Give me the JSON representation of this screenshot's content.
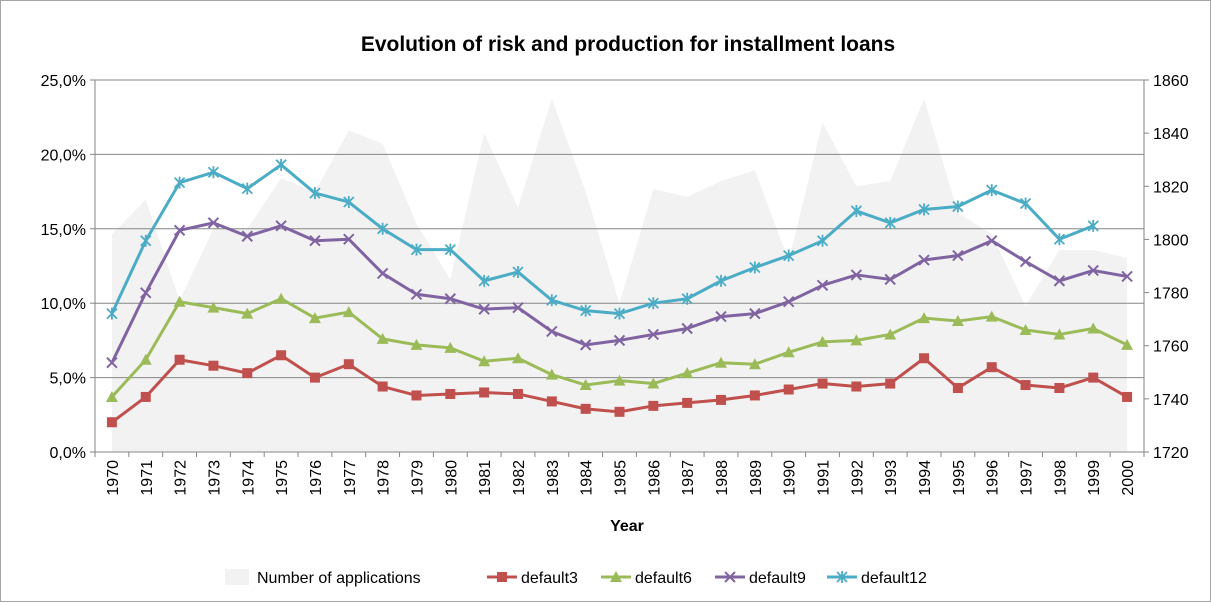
{
  "chart_data": {
    "type": "line",
    "title": "Evolution of risk and production for installment loans",
    "xlabel": "Year",
    "ylabel": "",
    "y2label": "",
    "categories": [
      "1970",
      "1971",
      "1972",
      "1973",
      "1974",
      "1975",
      "1976",
      "1977",
      "1978",
      "1979",
      "1980",
      "1981",
      "1982",
      "1983",
      "1984",
      "1985",
      "1986",
      "1987",
      "1988",
      "1989",
      "1990",
      "1991",
      "1992",
      "1993",
      "1994",
      "1995",
      "1996",
      "1997",
      "1998",
      "1999",
      "2000"
    ],
    "ylim": [
      0,
      0.25
    ],
    "y_ticks": [
      "0,0%",
      "5,0%",
      "10,0%",
      "15,0%",
      "20,0%",
      "25,0%"
    ],
    "y_tick_values": [
      0,
      0.05,
      0.1,
      0.15,
      0.2,
      0.25
    ],
    "y2lim": [
      1720,
      1860
    ],
    "y2_ticks": [
      "1720",
      "1740",
      "1760",
      "1780",
      "1800",
      "1820",
      "1840",
      "1860"
    ],
    "y2_tick_values": [
      1720,
      1740,
      1760,
      1780,
      1800,
      1820,
      1840,
      1860
    ],
    "grid": true,
    "legend_position": "bottom",
    "area_series": {
      "name": "Number of applications",
      "axis": "secondary",
      "color": "#f2f2f2",
      "values": [
        1802,
        1815,
        1777,
        1804,
        1804,
        1823,
        1818,
        1841,
        1836,
        1806,
        1785,
        1840,
        1812,
        1853,
        1818,
        1776,
        1819,
        1816,
        1822,
        1826,
        1792,
        1844,
        1820,
        1822,
        1853,
        1810,
        1802,
        1775,
        1796,
        1796,
        1793
      ]
    },
    "series": [
      {
        "name": "default3",
        "color": "#c0504d",
        "marker": "square",
        "values": [
          0.02,
          0.037,
          0.062,
          0.058,
          0.053,
          0.065,
          0.05,
          0.059,
          0.044,
          0.038,
          0.039,
          0.04,
          0.039,
          0.034,
          0.029,
          0.027,
          0.031,
          0.033,
          0.035,
          0.038,
          0.042,
          0.046,
          0.044,
          0.046,
          0.063,
          0.043,
          0.057,
          0.045,
          0.043,
          0.05,
          0.037
        ]
      },
      {
        "name": "default6",
        "color": "#9bbb59",
        "marker": "triangle",
        "values": [
          0.037,
          0.062,
          0.101,
          0.097,
          0.093,
          0.103,
          0.09,
          0.094,
          0.076,
          0.072,
          0.07,
          0.061,
          0.063,
          0.052,
          0.045,
          0.048,
          0.046,
          0.053,
          0.06,
          0.059,
          0.067,
          0.074,
          0.075,
          0.079,
          0.09,
          0.088,
          0.091,
          0.082,
          0.079,
          0.083,
          0.072
        ]
      },
      {
        "name": "default9",
        "color": "#8064a2",
        "marker": "x",
        "values": [
          0.06,
          0.107,
          0.149,
          0.154,
          0.145,
          0.152,
          0.142,
          0.143,
          0.12,
          0.106,
          0.103,
          0.096,
          0.097,
          0.081,
          0.072,
          0.075,
          0.079,
          0.083,
          0.091,
          0.093,
          0.101,
          0.112,
          0.119,
          0.116,
          0.129,
          0.132,
          0.142,
          0.128,
          0.115,
          0.122,
          0.118
        ]
      },
      {
        "name": "default12",
        "color": "#4bacc6",
        "marker": "star",
        "values": [
          0.093,
          0.142,
          0.181,
          0.188,
          0.177,
          0.193,
          0.174,
          0.168,
          0.15,
          0.136,
          0.136,
          0.115,
          0.121,
          0.102,
          0.095,
          0.093,
          0.1,
          0.103,
          0.115,
          0.124,
          0.132,
          0.142,
          0.162,
          0.154,
          0.163,
          0.165,
          0.176,
          0.167,
          0.143,
          0.152,
          null
        ]
      }
    ]
  }
}
